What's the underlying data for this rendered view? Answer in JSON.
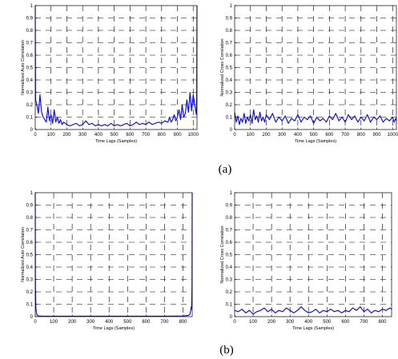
{
  "figure": {
    "captions": [
      "(a)",
      "(b)"
    ]
  },
  "chart_data": [
    {
      "type": "line",
      "title": "",
      "xlabel": "Time Lags (Samples)",
      "ylabel": "Normalized Auto Correlation",
      "xlim": [
        0,
        1024
      ],
      "ylim": [
        0,
        1
      ],
      "xticks": [
        0,
        100,
        200,
        300,
        400,
        500,
        600,
        700,
        800,
        900,
        1000
      ],
      "yticks": [
        0,
        0.1,
        0.2,
        0.3,
        0.4,
        0.5,
        0.6,
        0.7,
        0.8,
        0.9,
        1
      ],
      "grid": true,
      "color": "#0000ff",
      "series": [
        {
          "x": [
            0,
            2,
            10,
            20,
            30,
            40,
            50,
            60,
            70,
            80,
            90,
            100,
            110,
            120,
            130,
            140,
            150,
            160,
            170,
            180,
            200,
            220,
            240,
            260,
            280,
            300,
            320,
            340,
            360,
            380,
            400,
            420,
            440,
            460,
            480,
            500,
            520,
            540,
            560,
            580,
            600,
            620,
            640,
            660,
            680,
            700,
            720,
            740,
            760,
            780,
            800,
            820,
            840,
            850,
            860,
            870,
            880,
            890,
            900,
            910,
            920,
            930,
            940,
            950,
            960,
            970,
            980,
            990,
            1000,
            1010,
            1020,
            1022,
            1024
          ],
          "values": [
            1.0,
            0.24,
            0.2,
            0.13,
            0.28,
            0.14,
            0.1,
            0.08,
            0.06,
            0.18,
            0.07,
            0.12,
            0.05,
            0.16,
            0.06,
            0.1,
            0.05,
            0.08,
            0.04,
            0.06,
            0.04,
            0.03,
            0.04,
            0.05,
            0.03,
            0.04,
            0.07,
            0.04,
            0.05,
            0.03,
            0.04,
            0.03,
            0.04,
            0.03,
            0.05,
            0.03,
            0.04,
            0.03,
            0.04,
            0.05,
            0.03,
            0.04,
            0.06,
            0.04,
            0.05,
            0.04,
            0.06,
            0.04,
            0.05,
            0.06,
            0.05,
            0.07,
            0.06,
            0.1,
            0.06,
            0.08,
            0.12,
            0.07,
            0.1,
            0.16,
            0.08,
            0.2,
            0.1,
            0.13,
            0.24,
            0.14,
            0.3,
            0.15,
            0.28,
            0.2,
            0.12,
            0.24,
            1.0
          ]
        }
      ]
    },
    {
      "type": "line",
      "title": "",
      "xlabel": "Time Lags (Samples)",
      "ylabel": "Normalized Cross Correlation",
      "xlim": [
        0,
        1024
      ],
      "ylim": [
        0,
        1
      ],
      "xticks": [
        0,
        100,
        200,
        300,
        400,
        500,
        600,
        700,
        800,
        900,
        1000
      ],
      "yticks": [
        0,
        0.1,
        0.2,
        0.3,
        0.4,
        0.5,
        0.6,
        0.7,
        0.8,
        0.9,
        1
      ],
      "grid": true,
      "color": "#0000ff",
      "series": [
        {
          "x": [
            0,
            10,
            20,
            30,
            40,
            50,
            60,
            70,
            80,
            90,
            100,
            110,
            120,
            130,
            140,
            150,
            160,
            170,
            180,
            190,
            200,
            220,
            240,
            260,
            280,
            300,
            320,
            340,
            360,
            380,
            400,
            420,
            440,
            460,
            480,
            500,
            520,
            540,
            560,
            580,
            600,
            620,
            640,
            660,
            680,
            700,
            720,
            740,
            760,
            780,
            800,
            820,
            840,
            860,
            880,
            900,
            920,
            940,
            960,
            980,
            1000,
            1010,
            1020,
            1024
          ],
          "values": [
            0.14,
            0.06,
            0.11,
            0.04,
            0.09,
            0.06,
            0.13,
            0.05,
            0.1,
            0.07,
            0.12,
            0.05,
            0.16,
            0.08,
            0.11,
            0.06,
            0.14,
            0.07,
            0.1,
            0.06,
            0.12,
            0.08,
            0.13,
            0.06,
            0.1,
            0.07,
            0.11,
            0.05,
            0.09,
            0.07,
            0.12,
            0.06,
            0.1,
            0.08,
            0.11,
            0.05,
            0.1,
            0.07,
            0.09,
            0.06,
            0.11,
            0.08,
            0.13,
            0.07,
            0.1,
            0.06,
            0.12,
            0.08,
            0.11,
            0.06,
            0.1,
            0.07,
            0.12,
            0.06,
            0.1,
            0.08,
            0.11,
            0.06,
            0.09,
            0.07,
            0.1,
            0.06,
            0.09,
            0.07
          ]
        }
      ]
    },
    {
      "type": "line",
      "title": "",
      "xlabel": "Time Lags (Samples)",
      "ylabel": "Normalized Auto Correlation",
      "xlim": [
        0,
        850
      ],
      "ylim": [
        0,
        1
      ],
      "xticks": [
        0,
        100,
        200,
        300,
        400,
        500,
        600,
        700,
        800
      ],
      "yticks": [
        0,
        0.1,
        0.2,
        0.3,
        0.4,
        0.5,
        0.6,
        0.7,
        0.8,
        0.9,
        1
      ],
      "grid": true,
      "color": "#0000ff",
      "series": [
        {
          "x": [
            0,
            1,
            3,
            5,
            8,
            12,
            20,
            40,
            100,
            200,
            300,
            400,
            500,
            600,
            700,
            800,
            830,
            838,
            842,
            845,
            847,
            849,
            850
          ],
          "values": [
            1.0,
            0.24,
            0.08,
            0.05,
            0.02,
            0.01,
            0.005,
            0.004,
            0.004,
            0.004,
            0.004,
            0.004,
            0.004,
            0.004,
            0.004,
            0.005,
            0.01,
            0.02,
            0.05,
            0.08,
            0.06,
            0.25,
            1.0
          ]
        }
      ]
    },
    {
      "type": "line",
      "title": "",
      "xlabel": "Time Lags (Samples)",
      "ylabel": "Normalized Cross Correlation",
      "xlim": [
        0,
        850
      ],
      "ylim": [
        0,
        1
      ],
      "xticks": [
        0,
        100,
        200,
        300,
        400,
        500,
        600,
        700,
        800
      ],
      "yticks": [
        0,
        0.1,
        0.2,
        0.3,
        0.4,
        0.5,
        0.6,
        0.7,
        0.8,
        0.9,
        1
      ],
      "grid": true,
      "color": "#0000ff",
      "series": [
        {
          "x": [
            0,
            20,
            40,
            60,
            80,
            100,
            120,
            140,
            160,
            180,
            200,
            220,
            240,
            260,
            280,
            300,
            320,
            340,
            360,
            380,
            400,
            420,
            440,
            460,
            480,
            500,
            520,
            540,
            560,
            580,
            600,
            620,
            640,
            660,
            680,
            700,
            720,
            740,
            760,
            780,
            800,
            820,
            840,
            850
          ],
          "values": [
            0.05,
            0.04,
            0.06,
            0.03,
            0.05,
            0.02,
            0.04,
            0.05,
            0.07,
            0.04,
            0.06,
            0.03,
            0.05,
            0.04,
            0.07,
            0.05,
            0.03,
            0.05,
            0.08,
            0.05,
            0.03,
            0.04,
            0.06,
            0.03,
            0.05,
            0.04,
            0.06,
            0.04,
            0.05,
            0.03,
            0.05,
            0.04,
            0.07,
            0.05,
            0.08,
            0.04,
            0.06,
            0.03,
            0.05,
            0.04,
            0.06,
            0.05,
            0.07,
            0.06
          ]
        }
      ]
    }
  ]
}
